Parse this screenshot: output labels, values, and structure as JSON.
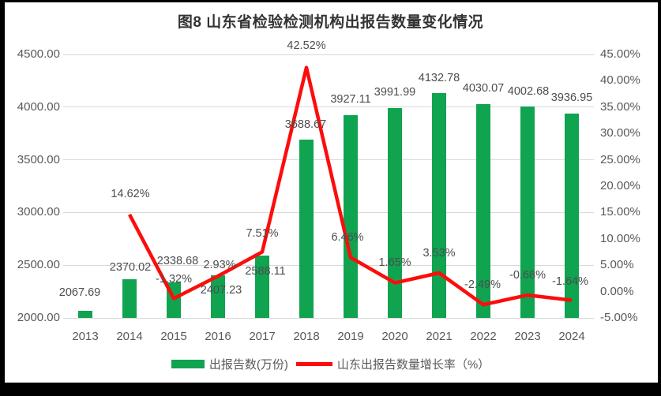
{
  "title": "图8  山东省检验检测机构出报告数量变化情况",
  "legend": {
    "bar_label": "出报告数(万份)",
    "line_label": "山东出报告数量增长率（%）"
  },
  "colors": {
    "bar": "#10a350",
    "line": "#fc0d0b",
    "grid": "#d9d9d9",
    "axis_text": "#595959",
    "label_text": "#4d4d4d",
    "title_text": "#333333",
    "panel_bg": "#ffffff",
    "frame_bg": "#000000"
  },
  "chart_data": {
    "type": "bar+line",
    "title": "图8  山东省检验检测机构出报告数量变化情况",
    "categories": [
      "2013",
      "2014",
      "2015",
      "2016",
      "2017",
      "2018",
      "2019",
      "2020",
      "2021",
      "2022",
      "2023",
      "2024"
    ],
    "series": [
      {
        "name": "出报告数(万份)",
        "type": "bar",
        "axis": "left",
        "color": "#10a350",
        "values": [
          2067.69,
          2370.02,
          2338.68,
          2407.23,
          2588.11,
          3688.67,
          3927.11,
          3991.99,
          4132.78,
          4030.07,
          4002.68,
          3936.95
        ],
        "labels": [
          "2067.69",
          "2370.02",
          "2338.68",
          "2407.23",
          "2588.11",
          "3688.67",
          "3927.11",
          "3991.99",
          "4132.78",
          "4030.07",
          "4002.68",
          "3936.95"
        ]
      },
      {
        "name": "山东出报告数量增长率（%）",
        "type": "line",
        "axis": "right",
        "color": "#fc0d0b",
        "values": [
          null,
          14.62,
          -1.32,
          2.93,
          7.51,
          42.52,
          6.46,
          1.65,
          3.53,
          -2.49,
          -0.68,
          -1.64
        ],
        "labels": [
          null,
          "14.62%",
          "-1.32%",
          "2.93%",
          "7.51%",
          "42.52%",
          "6.46%",
          "1.65%",
          "3.53%",
          "-2.49%",
          "-0.68%",
          "-1.64%"
        ]
      }
    ],
    "left_axis": {
      "min": 2000,
      "max": 4500,
      "step": 500,
      "tick_labels": [
        "2000.00",
        "2500.00",
        "3000.00",
        "3500.00",
        "4000.00",
        "4500.00"
      ]
    },
    "right_axis": {
      "min": -5,
      "max": 45,
      "step": 5,
      "tick_labels": [
        "-5.00%",
        "0.00%",
        "5.00%",
        "10.00%",
        "15.00%",
        "20.00%",
        "25.00%",
        "30.00%",
        "35.00%",
        "40.00%",
        "45.00%"
      ]
    },
    "grid": true,
    "legend_position": "bottom"
  }
}
